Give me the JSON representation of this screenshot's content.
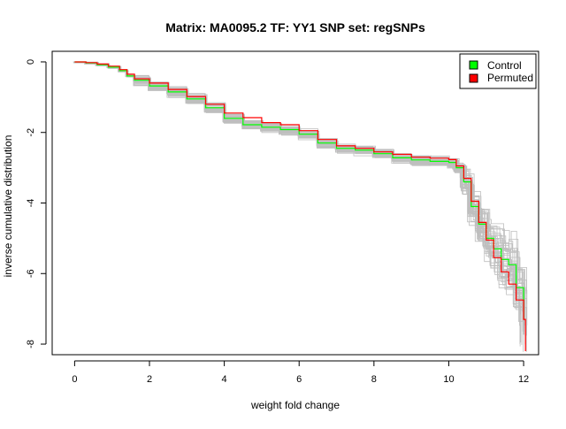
{
  "chart_data": {
    "type": "line",
    "title": "Matrix: MA0095.2 TF: YY1 SNP set: regSNPs",
    "xlabel": "weight fold change",
    "ylabel": "inverse cumulative distribution",
    "xlim": [
      -0.6,
      12.4
    ],
    "ylim": [
      -8.3,
      0.3
    ],
    "x_ticks": [
      0,
      2,
      4,
      6,
      8,
      10,
      12
    ],
    "x_tick_labels": [
      "0",
      "2",
      "4",
      "6",
      "8",
      "10",
      "12"
    ],
    "y_ticks": [
      0,
      -2,
      -4,
      -6,
      -8
    ],
    "y_tick_labels": [
      "0",
      "-2",
      "-4",
      "-6",
      "-8"
    ],
    "grid": false,
    "legend_position": "top-right",
    "legend": [
      {
        "label": "Control",
        "color": "#00ff00"
      },
      {
        "label": "Permuted",
        "color": "#ff0000"
      }
    ],
    "permutation_band_color": "#bebebe",
    "series": [
      {
        "name": "Control",
        "color": "#00ff00",
        "x": [
          0,
          0.3,
          0.6,
          0.9,
          1.2,
          1.4,
          1.6,
          2.0,
          2.5,
          3.0,
          3.5,
          4.0,
          4.5,
          5.0,
          5.5,
          6.0,
          6.5,
          7.0,
          7.5,
          8.0,
          8.5,
          9.0,
          9.5,
          10.0,
          10.2,
          10.4,
          10.6,
          10.8,
          11.0,
          11.2,
          11.4,
          11.6,
          11.8,
          12.0
        ],
        "values": [
          0,
          -0.03,
          -0.08,
          -0.15,
          -0.25,
          -0.4,
          -0.52,
          -0.68,
          -0.85,
          -1.05,
          -1.3,
          -1.6,
          -1.78,
          -1.85,
          -1.92,
          -2.05,
          -2.3,
          -2.45,
          -2.5,
          -2.6,
          -2.72,
          -2.78,
          -2.82,
          -2.85,
          -3.0,
          -3.4,
          -4.1,
          -4.6,
          -5.0,
          -5.3,
          -5.6,
          -5.75,
          -6.4,
          -7.3
        ]
      },
      {
        "name": "Permuted",
        "color": "#ff0000",
        "x": [
          0,
          0.3,
          0.6,
          0.9,
          1.2,
          1.4,
          1.6,
          2.0,
          2.5,
          3.0,
          3.5,
          4.0,
          4.5,
          5.0,
          5.5,
          6.0,
          6.5,
          7.0,
          7.5,
          8.0,
          8.5,
          9.0,
          9.5,
          10.0,
          10.2,
          10.4,
          10.6,
          10.8,
          11.0,
          11.2,
          11.4,
          11.6,
          11.8,
          12.0,
          12.05
        ],
        "values": [
          0,
          -0.02,
          -0.06,
          -0.12,
          -0.22,
          -0.35,
          -0.48,
          -0.6,
          -0.78,
          -0.98,
          -1.2,
          -1.45,
          -1.58,
          -1.72,
          -1.78,
          -1.95,
          -2.2,
          -2.38,
          -2.45,
          -2.55,
          -2.62,
          -2.7,
          -2.73,
          -2.77,
          -2.95,
          -3.3,
          -3.95,
          -4.55,
          -5.05,
          -5.55,
          -5.95,
          -6.3,
          -6.75,
          -7.3,
          -8.2
        ]
      }
    ]
  }
}
